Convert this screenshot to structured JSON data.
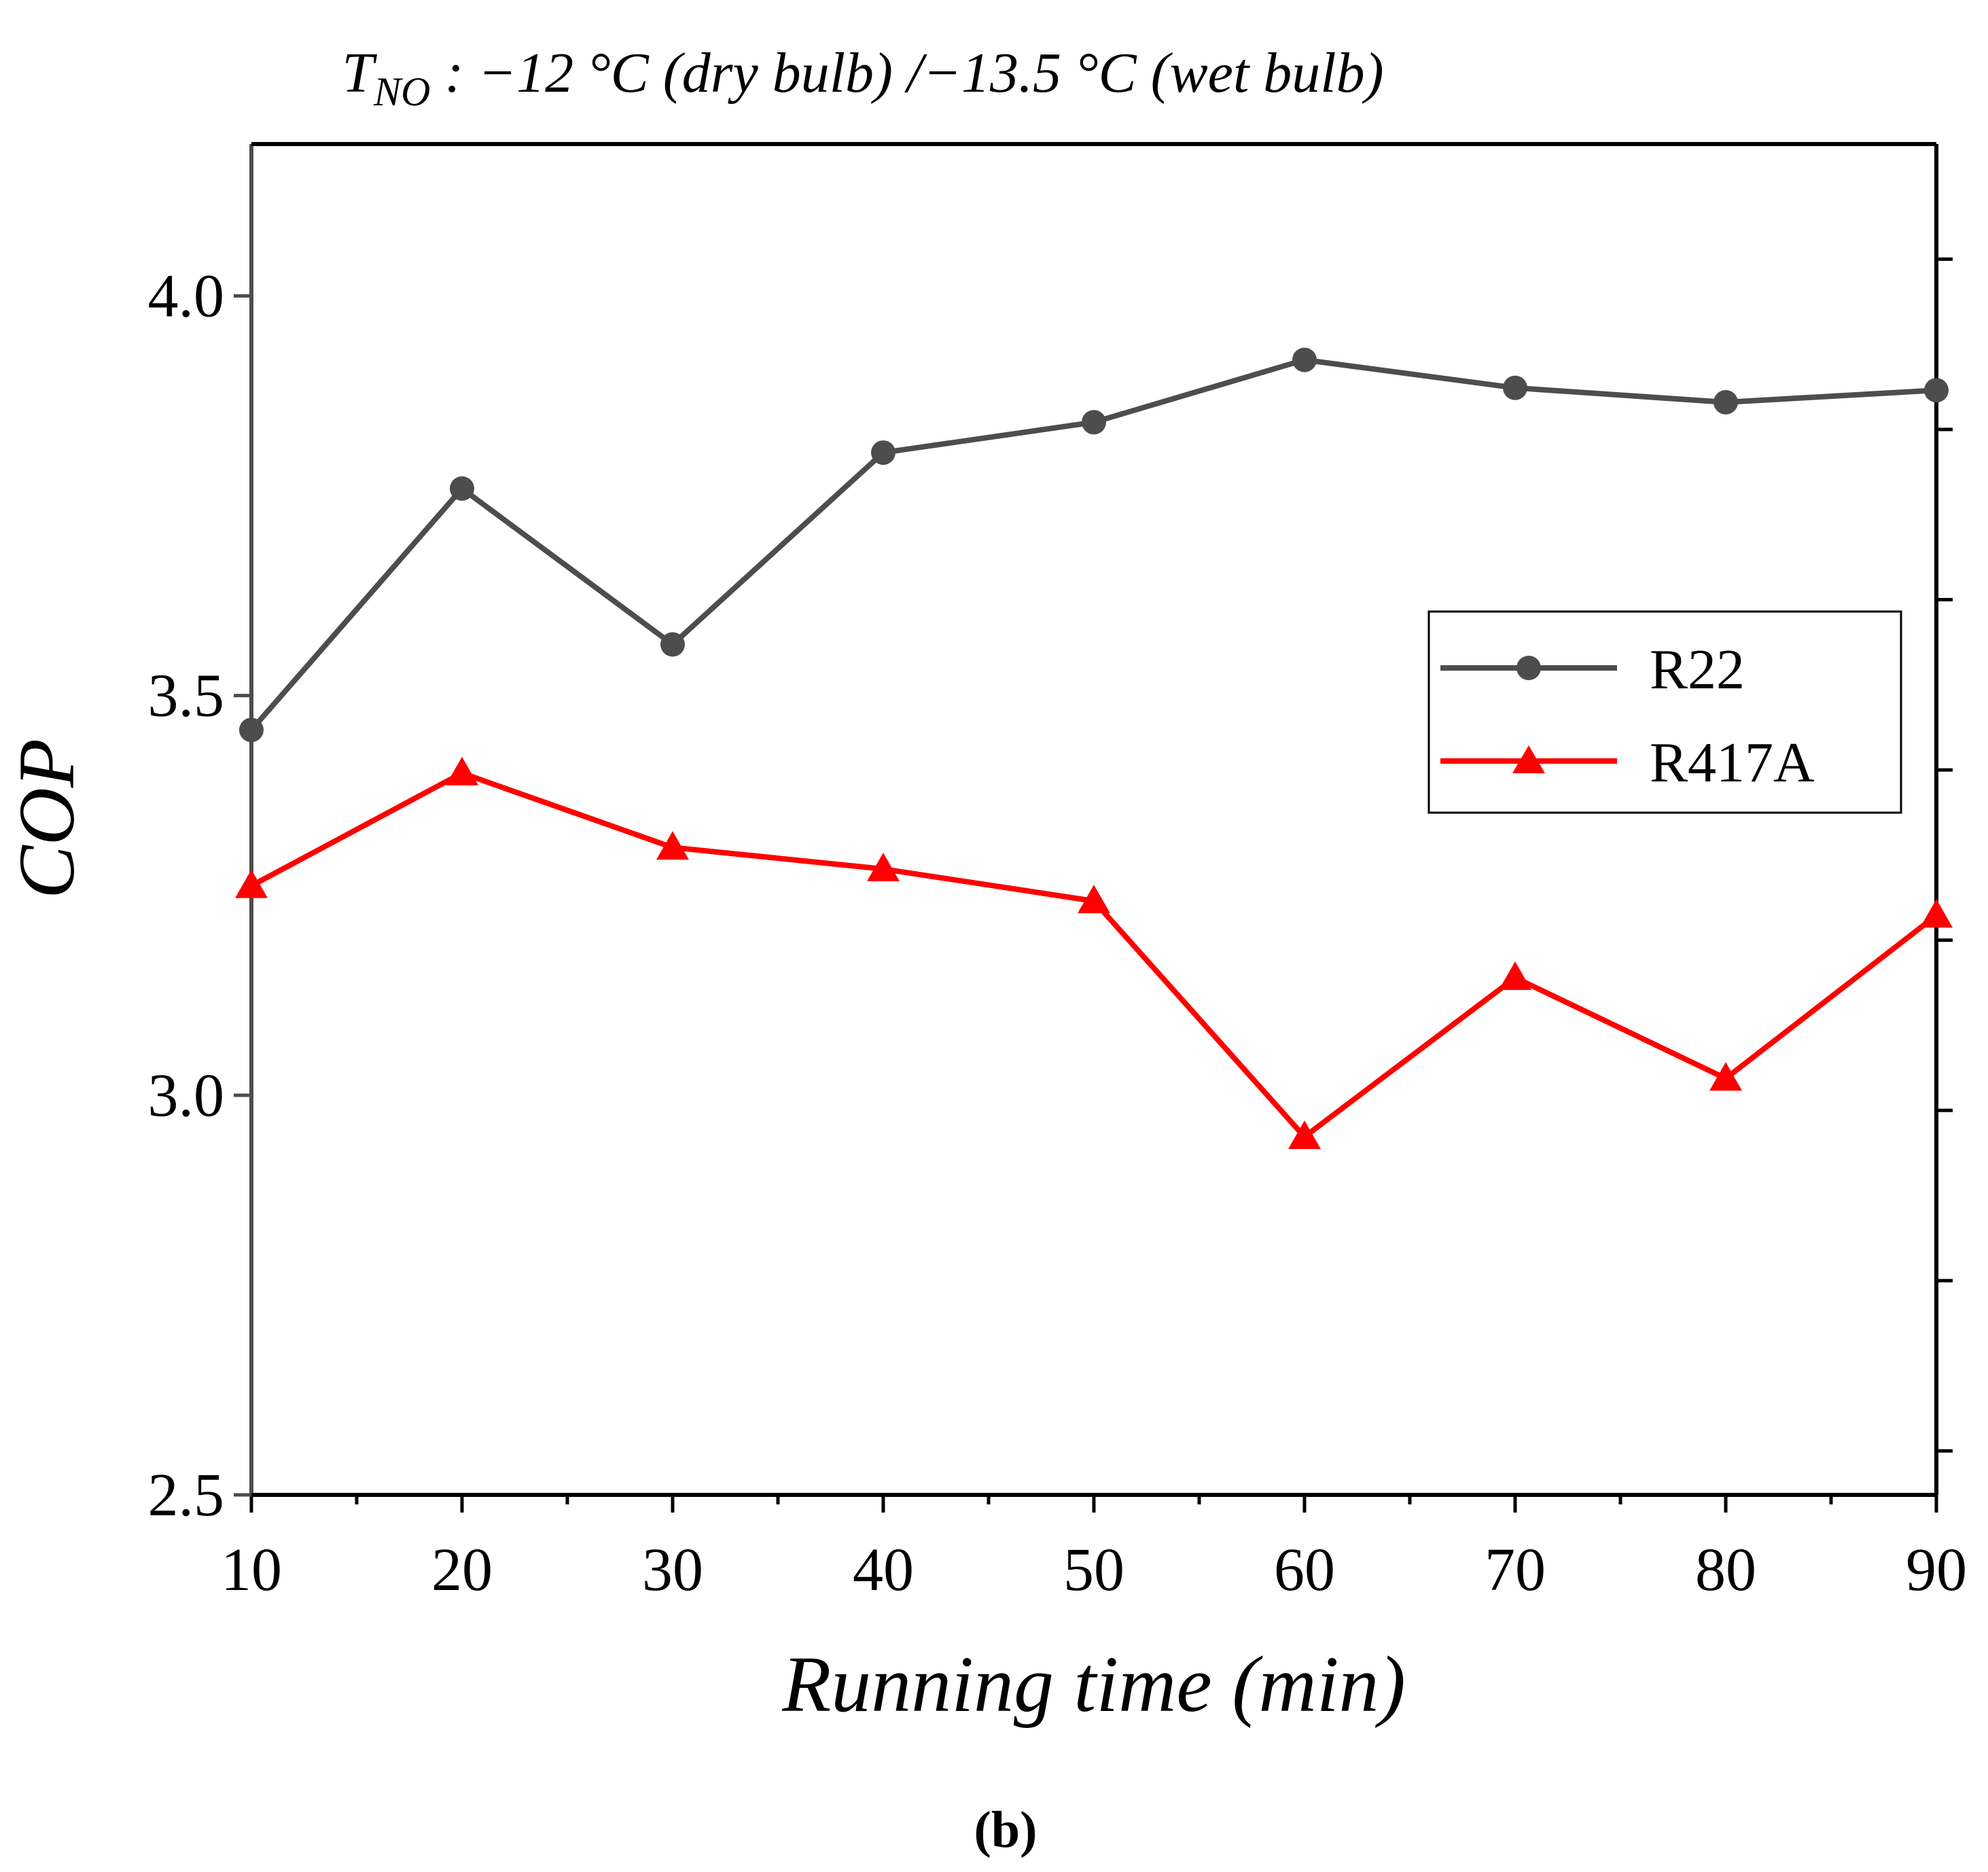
{
  "chart_data": {
    "type": "line",
    "title_main": "T",
    "title_sub": "NO",
    "title_rest": " : −12 °C (dry bulb) /−13.5 °C (wet bulb)",
    "xlabel": "Running time (min)",
    "ylabel": "COP",
    "panel_label": "(b)",
    "x": [
      10,
      20,
      30,
      40,
      50,
      60,
      70,
      80,
      90
    ],
    "xlim": [
      10,
      90
    ],
    "ylim": [
      2.5,
      4.19
    ],
    "x_ticks": [
      10,
      20,
      30,
      40,
      50,
      60,
      70,
      80,
      90
    ],
    "x_tick_labels": [
      "10",
      "20",
      "30",
      "40",
      "50",
      "60",
      "70",
      "80",
      "90"
    ],
    "y_ticks": [
      2.5,
      3.0,
      3.5,
      4.0
    ],
    "y_tick_labels": [
      "2.5",
      "3.0",
      "3.5",
      "4.0"
    ],
    "legend_position": "right",
    "series": [
      {
        "name": "R22",
        "marker": "circle",
        "color": "#4d4d4d",
        "values": [
          3.457,
          3.759,
          3.564,
          3.804,
          3.842,
          3.92,
          3.885,
          3.867,
          3.882
        ]
      },
      {
        "name": "R417A",
        "marker": "triangle",
        "color": "#ff0000",
        "values": [
          3.262,
          3.403,
          3.31,
          3.283,
          3.243,
          2.948,
          3.147,
          3.021,
          3.225
        ]
      }
    ],
    "right_axis_tick_values": [
      2.555,
      2.768,
      2.981,
      3.194,
      3.407,
      3.62,
      3.833,
      4.046
    ]
  }
}
